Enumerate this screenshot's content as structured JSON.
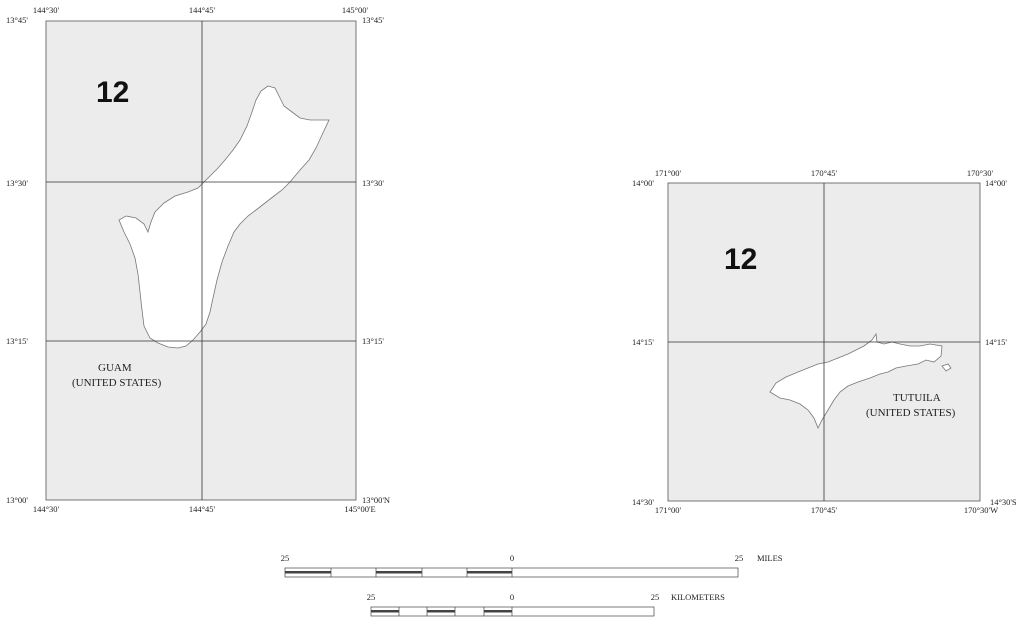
{
  "guam_map": {
    "zone_number": "12",
    "name_line1": "GUAM",
    "name_line2": "(UNITED STATES)",
    "top_lon": [
      "144°30'",
      "144°45'",
      "145°00'"
    ],
    "bottom_lon": [
      "144°30'",
      "144°45'",
      "145°00'E"
    ],
    "left_lat": [
      "13°45'",
      "13°30'",
      "13°15'",
      "13°00'"
    ],
    "right_lat": [
      "13°45'",
      "13°30'",
      "13°15'",
      "13°00'N"
    ]
  },
  "tutuila_map": {
    "zone_number": "12",
    "name_line1": "TUTUILA",
    "name_line2": "(UNITED STATES)",
    "top_lon": [
      "171°00'",
      "170°45'",
      "170°30'"
    ],
    "bottom_lon": [
      "171°00'",
      "170°45'",
      "170°30'W"
    ],
    "left_lat": [
      "14°00'",
      "14°15'",
      "14°30'"
    ],
    "right_lat": [
      "14°00'",
      "14°15'",
      "14°30'S"
    ]
  },
  "scale_bars": {
    "miles": {
      "left": "25",
      "center": "0",
      "right": "25",
      "unit": "MILES"
    },
    "kilometers": {
      "left": "25",
      "center": "0",
      "right": "25",
      "unit": "KILOMETERS"
    }
  },
  "colors": {
    "frame_fill": "#ececec",
    "land": "#ffffff",
    "grid": "#333333"
  }
}
